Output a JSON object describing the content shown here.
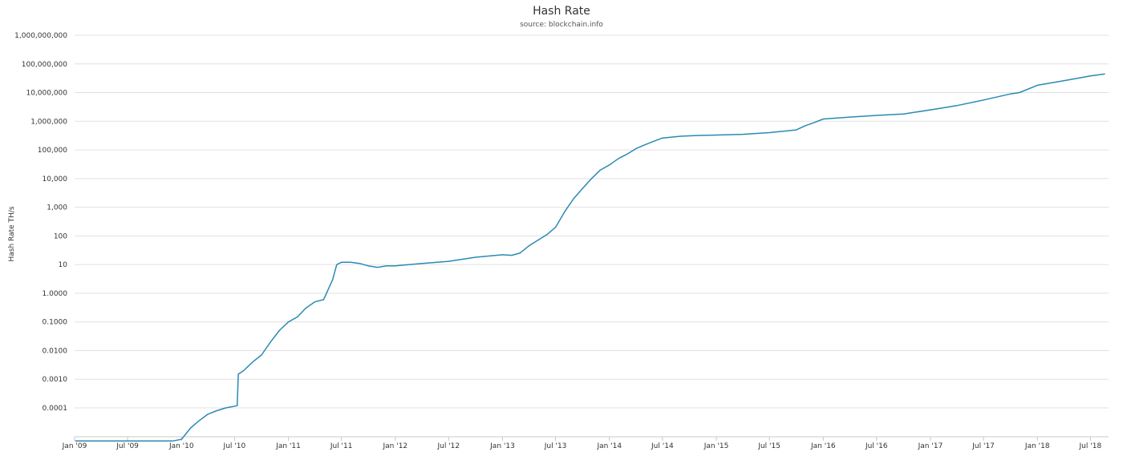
{
  "chart_data": {
    "type": "line",
    "title": "Hash Rate",
    "subtitle": "source: blockchain.info",
    "ylabel": "Hash Rate TH/s",
    "xlabel": "",
    "yscale": "log",
    "grid": true,
    "line_color": "#2a8ab3",
    "y_tick_labels": [
      "0.0001",
      "0.0010",
      "0.0100",
      "0.1000",
      "1.0000",
      "10",
      "100",
      "1,000",
      "10,000",
      "100,000",
      "1,000,000",
      "10,000,000",
      "100,000,000",
      "1,000,000,000"
    ],
    "y_tick_values": [
      0.0001,
      0.001,
      0.01,
      0.1,
      1,
      10,
      100,
      1000,
      10000,
      100000,
      1000000,
      10000000,
      100000000,
      1000000000
    ],
    "x_tick_labels": [
      "Jan '09",
      "Jul '09",
      "Jan '10",
      "Jul '10",
      "Jan '11",
      "Jul '11",
      "Jan '12",
      "Jul '12",
      "Jan '13",
      "Jul '13",
      "Jan '14",
      "Jul '14",
      "Jan '15",
      "Jul '15",
      "Jan '16",
      "Jul '16",
      "Jan '17",
      "Jul '17",
      "Jan '18",
      "Jul '18"
    ],
    "x_tick_values": [
      "2009-01-01",
      "2009-07-01",
      "2010-01-01",
      "2010-07-01",
      "2011-01-01",
      "2011-07-01",
      "2012-01-01",
      "2012-07-01",
      "2013-01-01",
      "2013-07-01",
      "2014-01-01",
      "2014-07-01",
      "2015-01-01",
      "2015-07-01",
      "2016-01-01",
      "2016-07-01",
      "2017-01-01",
      "2017-07-01",
      "2018-01-01",
      "2018-07-01"
    ],
    "xlim": [
      "2009-01-01",
      "2018-09-01"
    ],
    "ylim": [
      1e-05,
      1000000000
    ],
    "series": [
      {
        "name": "",
        "x": [
          "2009-01-03",
          "2009-07-01",
          "2009-12-01",
          "2010-01-01",
          "2010-02-01",
          "2010-03-01",
          "2010-04-01",
          "2010-05-01",
          "2010-06-01",
          "2010-07-10",
          "2010-07-14",
          "2010-08-01",
          "2010-09-01",
          "2010-10-01",
          "2010-11-01",
          "2010-12-01",
          "2011-01-01",
          "2011-02-01",
          "2011-03-01",
          "2011-04-01",
          "2011-05-01",
          "2011-06-01",
          "2011-06-15",
          "2011-07-01",
          "2011-08-01",
          "2011-09-01",
          "2011-10-01",
          "2011-11-01",
          "2011-12-01",
          "2012-01-01",
          "2012-04-01",
          "2012-07-01",
          "2012-10-01",
          "2013-01-01",
          "2013-02-01",
          "2013-03-01",
          "2013-04-01",
          "2013-05-01",
          "2013-06-01",
          "2013-07-01",
          "2013-08-01",
          "2013-09-01",
          "2013-10-01",
          "2013-11-01",
          "2013-12-01",
          "2014-01-01",
          "2014-02-01",
          "2014-03-01",
          "2014-04-01",
          "2014-05-01",
          "2014-06-01",
          "2014-07-01",
          "2014-08-01",
          "2014-09-01",
          "2014-10-01",
          "2014-11-01",
          "2015-01-01",
          "2015-04-01",
          "2015-07-01",
          "2015-10-01",
          "2015-11-01",
          "2015-12-01",
          "2016-01-01",
          "2016-04-01",
          "2016-07-01",
          "2016-10-01",
          "2017-01-01",
          "2017-04-01",
          "2017-07-01",
          "2017-10-01",
          "2017-11-01",
          "2018-01-01",
          "2018-04-01",
          "2018-07-01",
          "2018-08-20"
        ],
        "y": [
          7e-06,
          7e-06,
          7e-06,
          8e-06,
          2e-05,
          3.5e-05,
          6e-05,
          8e-05,
          0.0001,
          0.00012,
          0.0015,
          0.002,
          0.004,
          0.007,
          0.02,
          0.05,
          0.1,
          0.15,
          0.3,
          0.5,
          0.6,
          3,
          10,
          12,
          12,
          11,
          9,
          8,
          9,
          9,
          11,
          13,
          18,
          22,
          21,
          25,
          45,
          70,
          110,
          200,
          700,
          2000,
          4500,
          10000,
          20000,
          30000,
          50000,
          70000,
          110000,
          150000,
          200000,
          260000,
          280000,
          300000,
          310000,
          320000,
          330000,
          350000,
          400000,
          500000,
          700000,
          900000,
          1200000,
          1400000,
          1600000,
          1800000,
          2500000,
          3500000,
          5500000,
          9000000,
          10000000,
          18000000,
          26000000,
          38000000,
          45000000
        ]
      }
    ]
  }
}
